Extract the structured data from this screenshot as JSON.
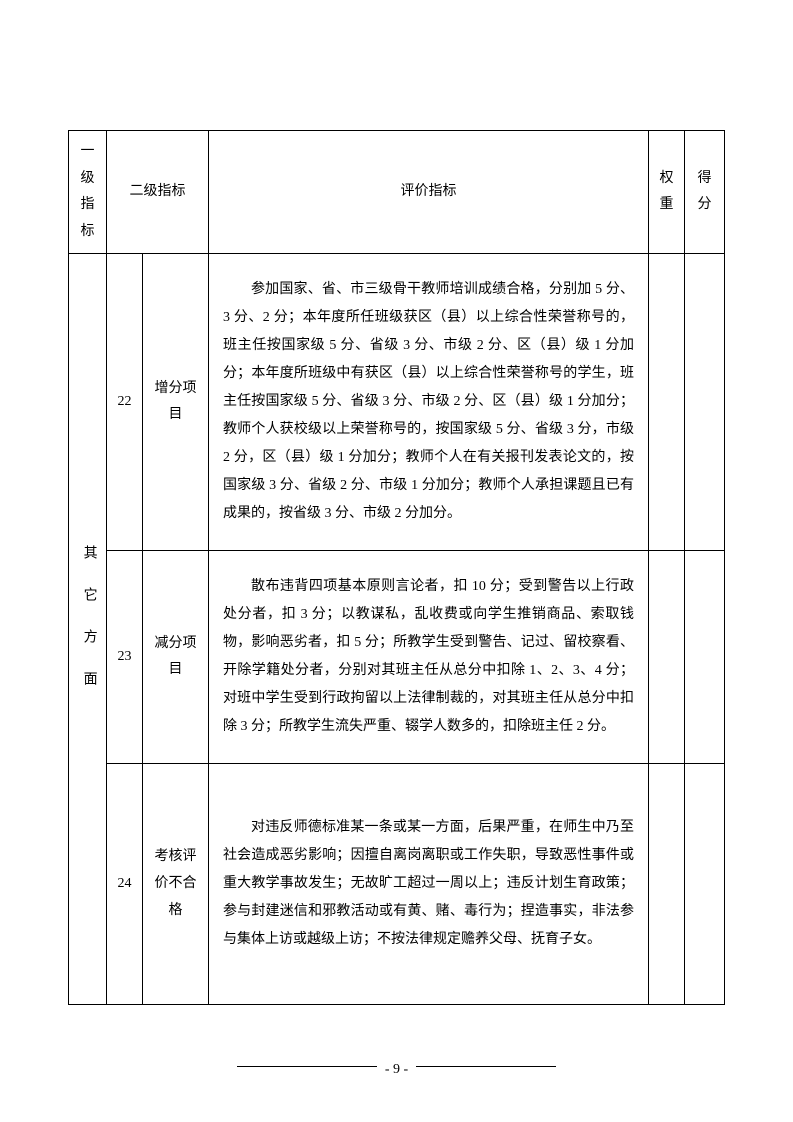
{
  "headers": {
    "level1": "一级指标",
    "level2": "二级指标",
    "eval": "评价指标",
    "weight": "权重",
    "score": "得分"
  },
  "category": "其它方面",
  "rows": [
    {
      "num": "22",
      "name": "增分项目",
      "desc": "参加国家、省、市三级骨干教师培训成绩合格，分别加 5 分、3 分、2 分；本年度所任班级获区（县）以上综合性荣誉称号的，班主任按国家级 5 分、省级 3 分、市级 2 分、区（县）级 1 分加分；本年度所班级中有获区（县）以上综合性荣誉称号的学生，班主任按国家级 5 分、省级 3 分、市级 2 分、区（县）级 1 分加分；教师个人获校级以上荣誉称号的，按国家级 5 分、省级 3 分，市级 2 分，区（县）级 1 分加分；教师个人在有关报刊发表论文的，按国家级 3 分、省级 2 分、市级 1 分加分；教师个人承担课题且已有成果的，按省级 3 分、市级 2 分加分。"
    },
    {
      "num": "23",
      "name": "减分项目",
      "desc": "散布违背四项基本原则言论者，扣 10 分；受到警告以上行政处分者，扣 3 分；以教谋私，乱收费或向学生推销商品、索取钱物，影响恶劣者，扣 5 分；所教学生受到警告、记过、留校察看、开除学籍处分者，分别对其班主任从总分中扣除 1、2、3、4 分；对班中学生受到行政拘留以上法律制裁的，对其班主任从总分中扣除 3 分；所教学生流失严重、辍学人数多的，扣除班主任 2 分。"
    },
    {
      "num": "24",
      "name": "考核评价不合格",
      "desc": "对违反师德标准某一条或某一方面，后果严重，在师生中乃至社会造成恶劣影响；因擅自离岗离职或工作失职，导致恶性事件或重大教学事故发生；无故旷工超过一周以上；违反计划生育政策；参与封建迷信和邪教活动或有黄、赌、毒行为；捏造事实，非法参与集体上访或越级上访；不按法律规定赡养父母、抚育子女。"
    }
  ],
  "pageNumber": "- 9 -"
}
